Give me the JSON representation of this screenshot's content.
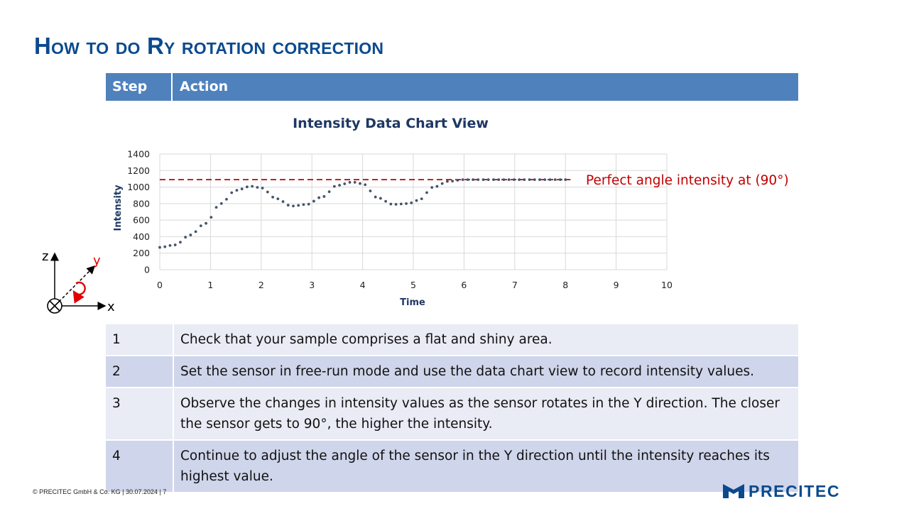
{
  "slide": {
    "title": "How to do Ry rotation correction"
  },
  "table": {
    "headers": [
      "Step",
      "Action"
    ],
    "rows": [
      {
        "step": "1",
        "action": "Check that your sample comprises a flat and shiny area."
      },
      {
        "step": "2",
        "action": "Set the sensor in free-run mode and use the data chart view to record intensity values."
      },
      {
        "step": "3",
        "action": "Observe the changes in intensity values as the sensor rotates in the Y direction. The closer the sensor gets to 90°, the higher the intensity."
      },
      {
        "step": "4",
        "action": "Continue to adjust the angle of the sensor in the Y direction until the intensity reaches its highest value."
      }
    ]
  },
  "chart_data": {
    "type": "scatter",
    "title": "Intensity Data Chart View",
    "xlabel": "Time",
    "ylabel": "Intensity",
    "xlim": [
      0,
      10
    ],
    "ylim": [
      0,
      1400
    ],
    "xticks": [
      0,
      1,
      2,
      3,
      4,
      5,
      6,
      7,
      8,
      9,
      10
    ],
    "yticks": [
      0,
      200,
      400,
      600,
      800,
      1000,
      1200,
      1400
    ],
    "grid": true,
    "series": [
      {
        "color": "#44546a",
        "key_points": {
          "x": [
            0,
            0.3,
            0.6,
            0.9,
            1.2,
            1.5,
            1.8,
            2.0,
            2.3,
            2.6,
            2.9,
            3.2,
            3.5,
            3.8,
            4.0,
            4.3,
            4.6,
            4.9,
            5.1,
            5.4,
            5.7,
            6.0,
            6.5,
            7.0,
            7.5,
            8.0
          ],
          "y": [
            270,
            300,
            420,
            560,
            800,
            960,
            1010,
            990,
            860,
            770,
            790,
            880,
            1020,
            1060,
            1040,
            870,
            790,
            800,
            840,
            1000,
            1070,
            1090,
            1090,
            1090,
            1090,
            1090
          ]
        },
        "x_range": [
          0,
          8
        ],
        "marker_count": 80
      }
    ],
    "reference_line": {
      "y": 1090,
      "label": "Perfect angle intensity at (90°)",
      "color": "#c00000",
      "x_range": [
        0,
        8.1
      ]
    }
  },
  "axes_figure": {
    "z_label": "z",
    "y_label": "y",
    "x_label": "x"
  },
  "footer": {
    "copyright": "© PRECITEC  GmbH  & Co. KG | 30.07.2024 | 7"
  },
  "logo": {
    "text": "PRECITEC",
    "color": "#0b4a8e"
  }
}
